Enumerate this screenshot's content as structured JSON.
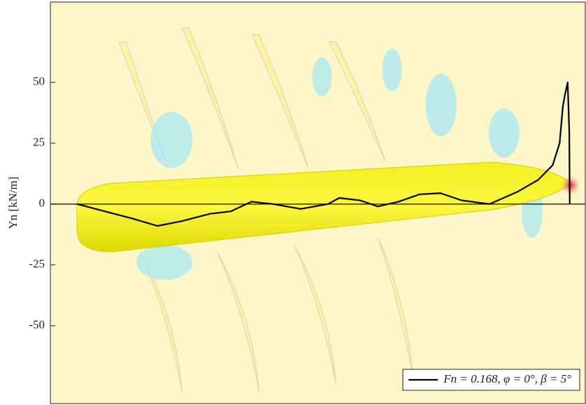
{
  "chart_data": {
    "type": "line",
    "ylabel": "Yn [kN/m]",
    "xlim": [
      0,
      100
    ],
    "ylim": [
      -82,
      83
    ],
    "yticks": [
      50,
      25,
      0,
      -25,
      -50
    ],
    "legend_position": "lower right",
    "series": [
      {
        "name": "Fn = 0.168,  φ = 0°,  β = 5°",
        "color": "#000000",
        "x": [
          5.0,
          10.2,
          15.4,
          20.0,
          24.6,
          29.8,
          33.7,
          37.6,
          41.6,
          46.8,
          51.9,
          54.0,
          57.9,
          61.2,
          65.1,
          69.0,
          72.9,
          76.9,
          82.1,
          87.3,
          91.2,
          93.9,
          95.2,
          95.8,
          96.2,
          96.7,
          97.0,
          97.1
        ],
        "values": [
          0,
          -3,
          -6,
          -9,
          -7,
          -4,
          -3,
          1,
          0,
          -2,
          0,
          2.5,
          1.5,
          -1,
          1,
          4,
          4.5,
          1.5,
          0,
          5,
          10,
          16,
          25,
          40,
          45,
          50,
          30,
          0
        ]
      }
    ]
  }
}
